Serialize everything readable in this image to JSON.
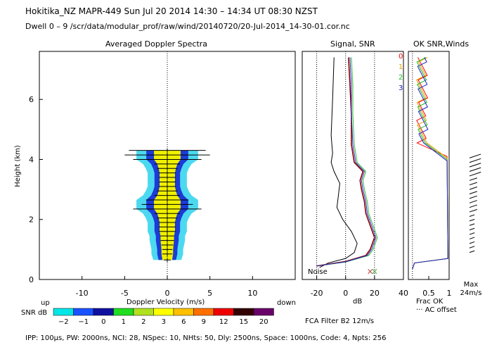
{
  "header": {
    "line1": "Hokitika_NZ  MAPR-449  Sun Jul 20 2014 14:30 – 14:34 UT 08:30 NZST",
    "line2": "Dwell  0 –  9   /scr/data/modular_prof/raw/wind/20140720/20-Jul-2014_14-30-01.cor.nc"
  },
  "panels": {
    "spectra_title": "Averaged Doppler Spectra",
    "signal_title": "Signal, SNR",
    "ok_title": "OK SNR,Winds"
  },
  "colors": {
    "spectra_outer": "#4cd9f0",
    "spectra_mid": "#1d3bd6",
    "spectra_inner": "#f0f000",
    "signal_black": "#000000",
    "signal_red": "#8b0000",
    "signal_green": "#2ec22e",
    "signal_blue": "#2a2ad0",
    "beam0": "#ff0000",
    "beam1": "#e6a000",
    "beam2": "#22bb22",
    "beam3": "#2020c0"
  },
  "chart_data": [
    {
      "type": "heatmap",
      "title": "Averaged Doppler Spectra",
      "xlabel": "Doppler Velocity (m/s)",
      "ylabel": "Height (km)",
      "xlim": [
        -15,
        15
      ],
      "ylim": [
        0,
        7.6
      ],
      "xticks": [
        "-10",
        "-5",
        "0",
        "5",
        "10"
      ],
      "yticks": [
        "0",
        "2",
        "4",
        "6"
      ],
      "x_left_label": "up",
      "x_right_label": "down",
      "spectral_width_bars": [
        {
          "h": 4.3,
          "halfwidth": 4.5
        },
        {
          "h": 4.15,
          "halfwidth": 5.0
        },
        {
          "h": 4.0,
          "halfwidth": 4.0
        },
        {
          "h": 3.85,
          "halfwidth": 1.5
        },
        {
          "h": 3.7,
          "halfwidth": 1.2
        },
        {
          "h": 3.55,
          "halfwidth": 1.0
        },
        {
          "h": 3.4,
          "halfwidth": 1.0
        },
        {
          "h": 3.25,
          "halfwidth": 1.0
        },
        {
          "h": 3.1,
          "halfwidth": 1.0
        },
        {
          "h": 2.95,
          "halfwidth": 1.2
        },
        {
          "h": 2.8,
          "halfwidth": 1.5
        },
        {
          "h": 2.65,
          "halfwidth": 2.5
        },
        {
          "h": 2.5,
          "halfwidth": 3.0
        },
        {
          "h": 2.35,
          "halfwidth": 4.0
        },
        {
          "h": 2.2,
          "halfwidth": 1.5
        },
        {
          "h": 2.05,
          "halfwidth": 1.2
        },
        {
          "h": 1.9,
          "halfwidth": 1.0
        },
        {
          "h": 1.75,
          "halfwidth": 1.0
        },
        {
          "h": 1.6,
          "halfwidth": 1.0
        },
        {
          "h": 1.45,
          "halfwidth": 0.8
        },
        {
          "h": 1.3,
          "halfwidth": 0.8
        },
        {
          "h": 1.15,
          "halfwidth": 0.7
        },
        {
          "h": 1.0,
          "halfwidth": 0.6
        },
        {
          "h": 0.85,
          "halfwidth": 0.6
        },
        {
          "h": 0.65,
          "halfwidth": 0.4
        }
      ]
    },
    {
      "type": "line",
      "title": "Signal, SNR",
      "xlabel": "dB",
      "xlim": [
        -30,
        40
      ],
      "xticks": [
        "-20",
        "0",
        "20",
        "40"
      ],
      "annotation": "Noise",
      "series": [
        {
          "color": "black",
          "points": [
            [
              -18,
              0.4
            ],
            [
              -12,
              0.55
            ],
            [
              0,
              0.7
            ],
            [
              6,
              0.9
            ],
            [
              8,
              1.2
            ],
            [
              4,
              1.6
            ],
            [
              -2,
              2.0
            ],
            [
              -6,
              2.4
            ],
            [
              -5,
              2.8
            ],
            [
              -4,
              3.2
            ],
            [
              -8,
              3.6
            ],
            [
              -10,
              3.9
            ],
            [
              -9,
              4.2
            ],
            [
              -10,
              4.8
            ],
            [
              -9,
              6.0
            ],
            [
              -8,
              7.4
            ]
          ]
        },
        {
          "color": "red",
          "points": [
            [
              -20,
              0.45
            ],
            [
              0,
              0.6
            ],
            [
              14,
              0.8
            ],
            [
              17,
              1.0
            ],
            [
              20,
              1.4
            ],
            [
              17,
              1.8
            ],
            [
              14,
              2.2
            ],
            [
              13,
              2.6
            ],
            [
              11,
              3.0
            ],
            [
              10,
              3.3
            ],
            [
              12,
              3.6
            ],
            [
              6,
              3.9
            ],
            [
              5,
              4.2
            ],
            [
              4,
              4.5
            ],
            [
              4,
              5.5
            ],
            [
              3,
              6.5
            ],
            [
              2,
              7.4
            ]
          ]
        },
        {
          "color": "green",
          "points": [
            [
              -20,
              0.45
            ],
            [
              0,
              0.58
            ],
            [
              16,
              0.8
            ],
            [
              19,
              1.0
            ],
            [
              22,
              1.4
            ],
            [
              19,
              1.8
            ],
            [
              16,
              2.2
            ],
            [
              15,
              2.6
            ],
            [
              13,
              3.0
            ],
            [
              12,
              3.3
            ],
            [
              14,
              3.6
            ],
            [
              8,
              3.9
            ],
            [
              7,
              4.2
            ],
            [
              6,
              4.5
            ],
            [
              5,
              5.5
            ],
            [
              5,
              6.5
            ],
            [
              4,
              7.4
            ]
          ]
        },
        {
          "color": "blue",
          "points": [
            [
              -20,
              0.45
            ],
            [
              0,
              0.59
            ],
            [
              15,
              0.8
            ],
            [
              18,
              1.0
            ],
            [
              21,
              1.4
            ],
            [
              18,
              1.8
            ],
            [
              15,
              2.2
            ],
            [
              14,
              2.6
            ],
            [
              12,
              3.0
            ],
            [
              11,
              3.3
            ],
            [
              13,
              3.6
            ],
            [
              7,
              3.9
            ],
            [
              6,
              4.2
            ],
            [
              5,
              4.5
            ],
            [
              4,
              5.5
            ],
            [
              4,
              6.5
            ],
            [
              3,
              7.4
            ]
          ]
        }
      ]
    },
    {
      "type": "line",
      "title": "OK SNR,Winds",
      "xlabel": "Frac OK",
      "xlim": [
        0,
        1
      ],
      "xticks": [
        "0.5",
        "1"
      ],
      "legend": [
        "0",
        "1",
        "2",
        "3"
      ],
      "note": "AC offset",
      "wind_scale": "Max 24m/s"
    }
  ],
  "snr_scale": {
    "label": "SNR dB",
    "values": [
      "−2",
      "−1",
      "0",
      "1",
      "2",
      "3",
      "6",
      "9",
      "12",
      "15",
      "20"
    ],
    "colors": [
      "#00e6e6",
      "#1a52ff",
      "#1010a0",
      "#20dd20",
      "#b0e020",
      "#ffff00",
      "#ffc000",
      "#ff7000",
      "#ee0000",
      "#330000",
      "#6a006a"
    ]
  },
  "filter_label": "FCA Filter B2 12m/s",
  "footer": "IPP: 100µs,  PW: 2000ns,  NCI:  28,  NSpec: 10, NHts: 50,  Dly: 2500ns,  Space: 1000ns,  Code: 4,  Npts: 256"
}
